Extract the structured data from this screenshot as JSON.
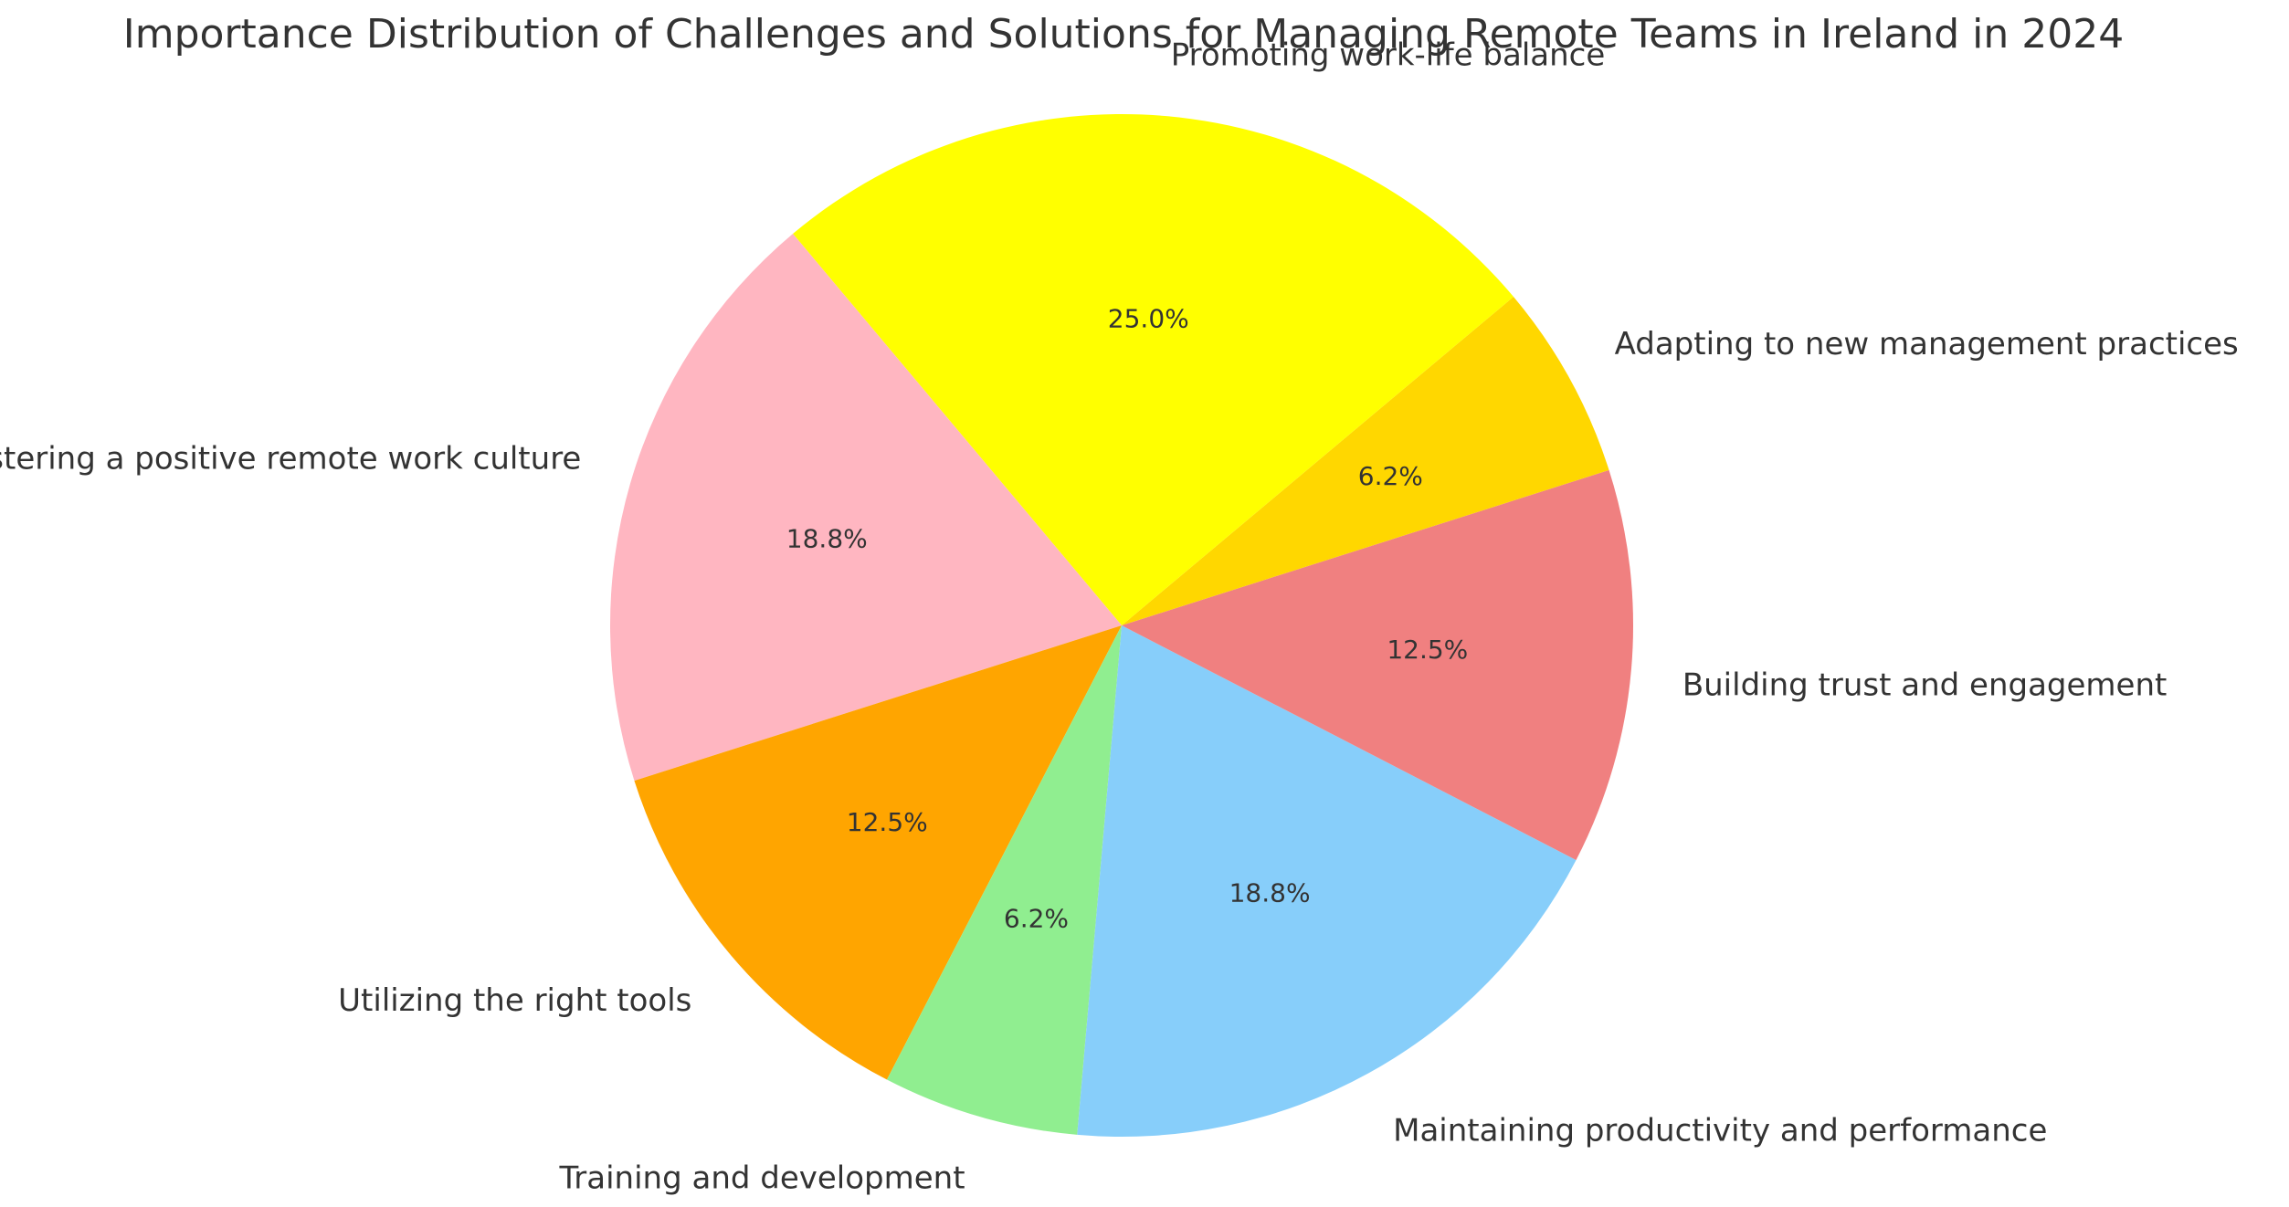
{
  "chart_data": {
    "type": "pie",
    "title": "Importance Distribution of Challenges and Solutions for Managing Remote Teams in Ireland in 2024",
    "categories": [
      "Maintaining productivity and performance",
      "Building trust and engagement",
      "Adapting to new management practices",
      "Promoting work-life balance",
      "Fostering a positive remote work culture",
      "Utilizing the right tools",
      "Training and development"
    ],
    "values": [
      18.8,
      12.5,
      6.2,
      25.0,
      18.8,
      12.5,
      6.2
    ],
    "percent_labels": [
      "18.8%",
      "12.5%",
      "6.2%",
      "25.0%",
      "18.8%",
      "12.5%",
      "6.2%"
    ],
    "colors": [
      "#87CEFA",
      "#F08080",
      "#FFD700",
      "#FFFF00",
      "#FFB6C1",
      "#FFA500",
      "#90EE90"
    ],
    "start_angle_deg": 265,
    "direction": "counterclockwise",
    "legend": "none"
  }
}
